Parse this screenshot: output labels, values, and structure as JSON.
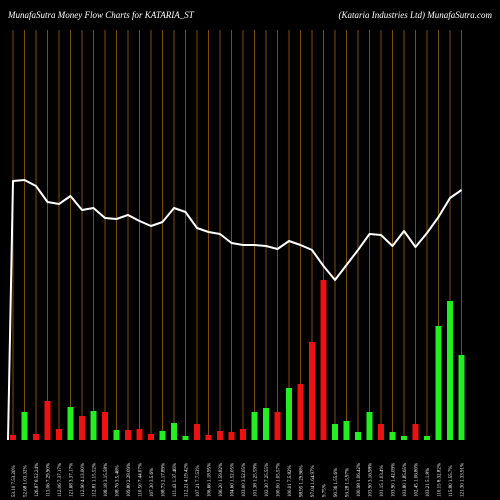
{
  "colors": {
    "background": "#000000",
    "grid": "#a0600a",
    "up": "#22ee22",
    "down": "#ee1111",
    "line": "#ffffff",
    "text": "#ffffff"
  },
  "chart_data": {
    "type": "bar",
    "title": "MunafaSutra  Money Flow  Charts for KATARIA_ST",
    "subtitle": "(Kataria  Industries Ltd) MunafaSutra.com",
    "xlabel": "",
    "ylabel": "",
    "grid": "vertical",
    "legend": "none",
    "ylim": [
      0,
      260
    ],
    "categories": [
      "53.10 7.53.20%",
      "52.68 1.03.32%",
      "126.87 8.52.24%",
      "113.06 7.29.90%",
      "112.06 7.37.17%",
      "121.68 3.37.17%",
      "112.90 4.13.00%",
      "112.81 1.15.52%",
      "108.18 3.15.58%",
      "108.76 3.5.46%",
      "109.80 2.28.09%",
      "110.50 7.44.07%",
      "107.30 3.5.6%",
      "108.73 2.17.89%",
      "111.43 1.37.46%",
      "112.21 4.19.42%",
      "107.21 7.7.53%",
      "106.66 1.18.95%",
      "106.20 1.59.82%",
      "104.60 1.52.05%",
      "103.00 3.52.05%",
      "101.38 1.25.59%",
      "102.30 7.25.55%",
      "100.00 1.05.57%",
      "100.01 7.5.82%",
      "98.95 1.29.96%",
      "97.04 1.64.97%",
      "9.75%",
      "90.36 1.55.6%",
      "93.28 1.5.97%",
      "100.98 1.06.42%",
      "103.90 3.16.98%",
      "101.15 1.03.4%",
      "103.90 1.42.09%",
      "103.80 1.85.65%",
      "102.45 1.06.80%",
      "103.21 5.1.8%",
      "110.15 8.32.82%",
      "115.80 1.55.7%",
      "121.30 1.33.91%"
    ],
    "bars": {
      "values": [
        5,
        28,
        6,
        39,
        11,
        33,
        24,
        29,
        28,
        10,
        10,
        11,
        6,
        9,
        17,
        4,
        16,
        5,
        9,
        8,
        11,
        28,
        32,
        28,
        52,
        56,
        98,
        160,
        16,
        19,
        8,
        28,
        16,
        8,
        4,
        16,
        4,
        114,
        139,
        85
      ],
      "direction": [
        "down",
        "up",
        "down",
        "down",
        "down",
        "up",
        "down",
        "up",
        "down",
        "up",
        "down",
        "down",
        "down",
        "up",
        "up",
        "up",
        "down",
        "down",
        "down",
        "down",
        "down",
        "up",
        "up",
        "down",
        "up",
        "down",
        "down",
        "down",
        "up",
        "up",
        "up",
        "up",
        "down",
        "up",
        "up",
        "down",
        "up",
        "up",
        "up",
        "up"
      ]
    },
    "line": {
      "start_value": 0,
      "values": [
        259,
        260,
        254,
        238,
        236,
        244,
        230,
        232,
        222,
        221,
        225,
        219,
        214,
        218,
        232,
        228,
        212,
        208,
        206,
        197,
        195,
        195,
        194,
        191,
        199,
        195,
        190,
        174,
        160,
        175,
        190,
        206,
        205,
        194,
        209,
        193,
        207,
        223,
        242,
        250
      ]
    }
  }
}
